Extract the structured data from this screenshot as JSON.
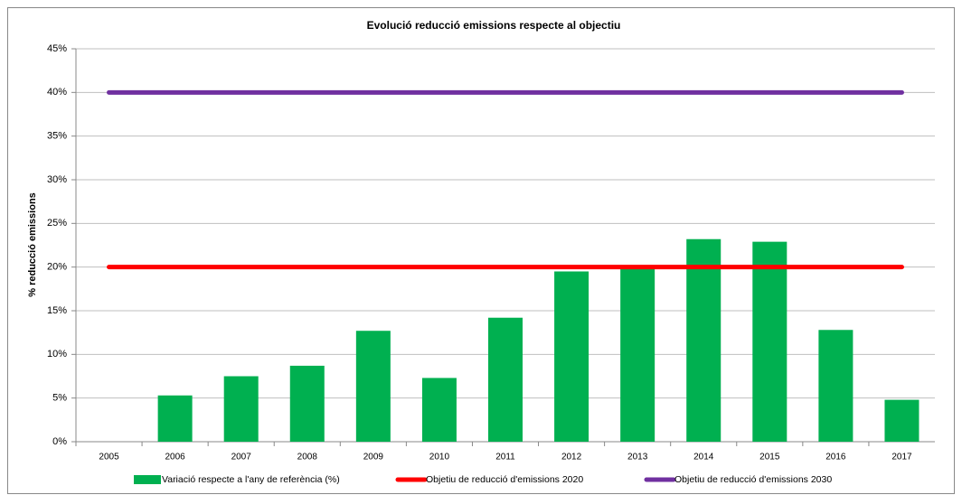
{
  "chart_data": {
    "type": "bar",
    "title": "Evolució reducció emissions respecte al objectiu",
    "y_label": "% reducció emissions",
    "categories": [
      "2005",
      "2006",
      "2007",
      "2008",
      "2009",
      "2010",
      "2011",
      "2012",
      "2013",
      "2014",
      "2015",
      "2016",
      "2017"
    ],
    "series": [
      {
        "name": "Variació respecte a l'any de referència (%)",
        "type": "bar",
        "color": "#00b050",
        "values": [
          0,
          5.3,
          7.5,
          8.7,
          12.7,
          7.3,
          14.2,
          19.5,
          19.8,
          23.2,
          22.9,
          12.8,
          4.8
        ]
      },
      {
        "name": "Objetiu de reducció d'emissions 2020",
        "type": "line",
        "color": "#ff0000",
        "values": [
          20,
          20,
          20,
          20,
          20,
          20,
          20,
          20,
          20,
          20,
          20,
          20,
          20
        ]
      },
      {
        "name": "Objetiu de reducció d'emissions 2030",
        "type": "line",
        "color": "#7030a0",
        "values": [
          40,
          40,
          40,
          40,
          40,
          40,
          40,
          40,
          40,
          40,
          40,
          40,
          40
        ]
      }
    ],
    "ylim": [
      0,
      45
    ],
    "yticks": [
      {
        "value": 0,
        "label": "0%"
      },
      {
        "value": 5,
        "label": "5%"
      },
      {
        "value": 10,
        "label": "10%"
      },
      {
        "value": 15,
        "label": "15%"
      },
      {
        "value": 20,
        "label": "20%"
      },
      {
        "value": 25,
        "label": "25%"
      },
      {
        "value": 30,
        "label": "30%"
      },
      {
        "value": 35,
        "label": "35%"
      },
      {
        "value": 40,
        "label": "40%"
      },
      {
        "value": 45,
        "label": "45%"
      }
    ],
    "grid": true,
    "legend": "bottom"
  }
}
